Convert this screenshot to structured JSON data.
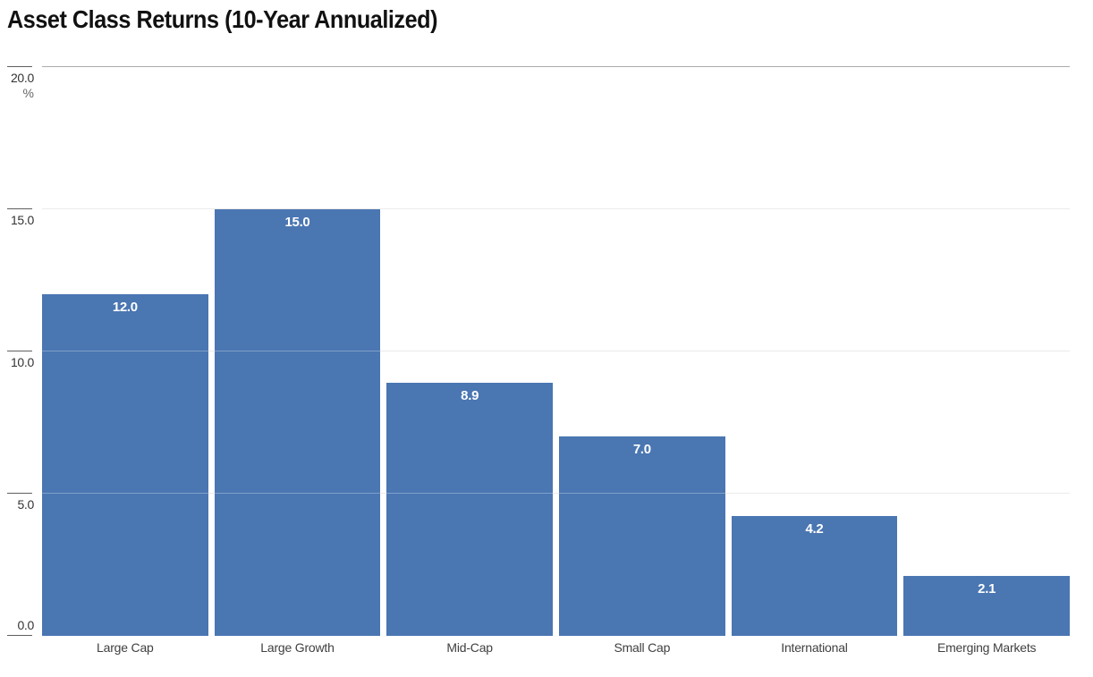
{
  "title": "Asset Class Returns (10-Year Annualized)",
  "y_axis": {
    "unit_label": "%",
    "ticks": [
      {
        "value": 20,
        "label": "20.0"
      },
      {
        "value": 15,
        "label": "15.0"
      },
      {
        "value": 10,
        "label": "10.0"
      },
      {
        "value": 5,
        "label": "5.0"
      },
      {
        "value": 0,
        "label": "0.0"
      }
    ]
  },
  "chart_data": {
    "type": "bar",
    "title": "Asset Class Returns (10-Year Annualized)",
    "categories": [
      "Large Cap",
      "Large Growth",
      "Mid-Cap",
      "Small Cap",
      "International",
      "Emerging Markets"
    ],
    "values": [
      12.0,
      15.0,
      8.9,
      7.0,
      4.2,
      2.1
    ],
    "value_labels": [
      "12.0",
      "15.0",
      "8.9",
      "7.0",
      "4.2",
      "2.1"
    ],
    "xlabel": "",
    "ylabel": "%",
    "ylim": [
      0,
      20
    ],
    "yticks": [
      0,
      5,
      10,
      15,
      20
    ],
    "grid": true,
    "legend": false,
    "orientation": "vertical"
  },
  "colors": {
    "bar_fill": "#4A76B2",
    "value_label": "#FFFFFF",
    "gridline": "#E2E2E2",
    "top_gridline": "#ABABAB",
    "tick_mark": "#5F5F5F",
    "tick_label": "#333333",
    "category_label": "#404040",
    "title": "#111111",
    "background": "#FFFFFF"
  }
}
